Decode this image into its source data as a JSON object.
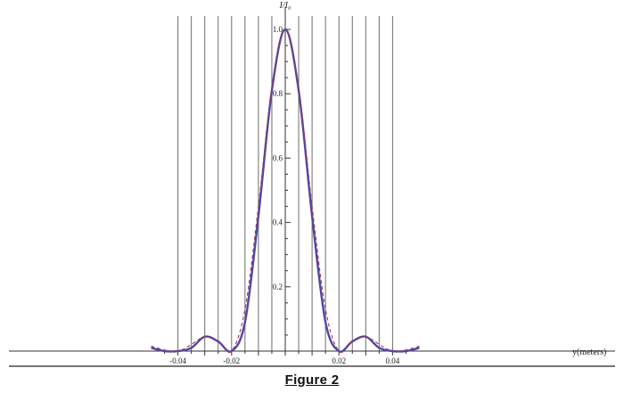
{
  "chart_data": {
    "type": "line",
    "title": "",
    "xlabel": "y(meters)",
    "ylabel": "I/I₀",
    "xlim": [
      -0.05,
      0.05
    ],
    "ylim": [
      0,
      1.0
    ],
    "x_ticks": [
      -0.04,
      -0.02,
      0.02,
      0.04
    ],
    "x_tick_labels": [
      "-0.04",
      "-0.02",
      "0.02",
      "0.04"
    ],
    "y_ticks": [
      0.2,
      0.4,
      0.6,
      0.8,
      1.0
    ],
    "y_tick_labels": [
      "0.2",
      "0.4",
      "0.6",
      "0.8",
      "1.0"
    ],
    "vertical_grid_x": [
      -0.04,
      -0.035,
      -0.03,
      -0.025,
      -0.02,
      -0.015,
      -0.01,
      -0.005,
      0.005,
      0.01,
      0.015,
      0.02,
      0.025,
      0.03,
      0.035,
      0.04
    ],
    "grid": true,
    "series": [
      {
        "style": "solid",
        "color": "#4b4ba0",
        "x": [
          -0.05,
          -0.045,
          -0.04,
          -0.035,
          -0.03,
          -0.025,
          -0.02,
          -0.015,
          -0.01,
          -0.005,
          0,
          0.005,
          0.01,
          0.015,
          0.02,
          0.025,
          0.03,
          0.035,
          0.04,
          0.045,
          0.05
        ],
        "y": [
          0.01,
          0.0,
          0.0,
          0.01,
          0.045,
          0.03,
          0.0,
          0.09,
          0.42,
          0.81,
          1.0,
          0.81,
          0.42,
          0.09,
          0.0,
          0.03,
          0.045,
          0.01,
          0.0,
          0.0,
          0.01
        ]
      },
      {
        "style": "dashed",
        "color": "#b03060",
        "x": [
          -0.05,
          -0.04,
          -0.03,
          -0.025,
          -0.02,
          -0.015,
          -0.01,
          -0.005,
          0,
          0.005,
          0.01,
          0.015,
          0.02,
          0.025,
          0.03,
          0.04,
          0.05
        ],
        "y": [
          0.015,
          0.0,
          0.045,
          0.03,
          0.0,
          0.13,
          0.45,
          0.82,
          1.0,
          0.82,
          0.45,
          0.13,
          0.0,
          0.03,
          0.045,
          0.0,
          0.015
        ]
      }
    ]
  },
  "caption": "Figure 2"
}
